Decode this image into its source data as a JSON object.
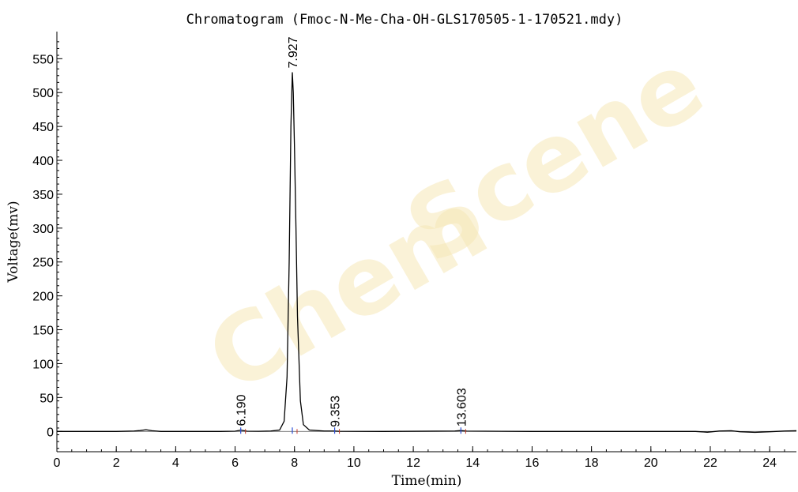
{
  "chart_data": {
    "type": "line",
    "title": "Chromatogram (Fmoc-N-Me-Cha-OH-GLS170505-1-170521.mdy)",
    "xlabel": "Time(min)",
    "ylabel": "Voltage(mv)",
    "xlim": [
      0,
      24.9
    ],
    "ylim": [
      -30,
      590
    ],
    "xticks": [
      0,
      2,
      4,
      6,
      8,
      10,
      12,
      14,
      16,
      18,
      20,
      22,
      24
    ],
    "yticks": [
      0,
      50,
      100,
      150,
      200,
      250,
      300,
      350,
      400,
      450,
      500,
      550
    ],
    "grid": false,
    "colors": {
      "trace": "#000000",
      "peak_label": "#000000",
      "marker_blue": "#2b4fd6",
      "marker_red": "#c83a2c"
    },
    "series": [
      {
        "x": [
          0,
          1.0,
          2.0,
          2.6,
          2.8,
          3.0,
          3.2,
          3.5,
          4.5,
          5.5,
          6.0,
          6.15,
          6.19,
          6.25,
          6.4,
          6.8,
          7.2,
          7.5,
          7.65,
          7.75,
          7.82,
          7.88,
          7.927,
          7.96,
          8.0,
          8.05,
          8.1,
          8.2,
          8.3,
          8.5,
          9.0,
          9.35,
          9.5,
          11.0,
          13.4,
          13.6,
          13.8,
          16.0,
          19.0,
          21.5,
          21.9,
          22.3,
          22.7,
          23.0,
          23.5,
          24.0,
          24.5,
          24.9
        ],
        "y": [
          0,
          0,
          0,
          0.5,
          1.2,
          2.5,
          1.0,
          0,
          0,
          0,
          0.3,
          1.5,
          2.0,
          1.5,
          0.3,
          0.2,
          0.5,
          2,
          15,
          80,
          250,
          450,
          530,
          500,
          420,
          300,
          170,
          45,
          10,
          2,
          0.5,
          0.5,
          0.2,
          0,
          0.5,
          1.2,
          0.4,
          0,
          0,
          0,
          -1.2,
          0.5,
          1.0,
          -0.5,
          -1.5,
          -0.5,
          0.5,
          1.0
        ]
      }
    ],
    "peaks": [
      {
        "time": 6.19,
        "label": "6.190"
      },
      {
        "time": 7.927,
        "label": "7.927"
      },
      {
        "time": 9.353,
        "label": "9.353"
      },
      {
        "time": 13.603,
        "label": "13.603"
      }
    ]
  },
  "watermark": {
    "brand_1": "Chem",
    "brand_2": "Scene"
  }
}
